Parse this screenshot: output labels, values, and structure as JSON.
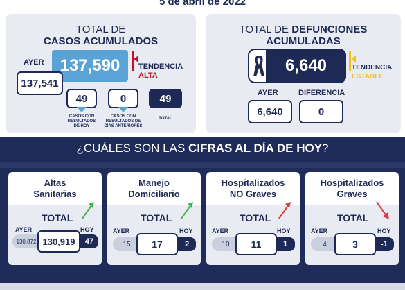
{
  "date": "5 de abril de 2022",
  "casos": {
    "header_line1": "TOTAL DE",
    "header_line2": "CASOS ACUMULADOS",
    "ayer_label": "AYER",
    "ayer_value": "137,541",
    "total_value": "137,590",
    "tendencia_label": "TENDENCIA",
    "tendencia_value": "ALTA",
    "con_resultados": "49",
    "con_resultados_label": "CASOS CON RESULTADOS DE HOY",
    "anteriores": "0",
    "anteriores_label": "CASOS CON RESULTADOS DE DÍAS ANTERIORES",
    "total_hoy": "49",
    "total_hoy_label": "TOTAL"
  },
  "defunciones": {
    "header_line1a": "TOTAL DE ",
    "header_line1b": "DEFUNCIONES",
    "header_line2": "ACUMULADAS",
    "total_value": "6,640",
    "tendencia_label": "TENDENCIA",
    "tendencia_value": "ESTABLE",
    "ayer_label": "AYER",
    "ayer_value": "6,640",
    "diferencia_label": "DIFERENCIA",
    "diferencia_value": "0"
  },
  "band": {
    "title_a": "¿CUÁLES SON LAS ",
    "title_b": "CIFRAS AL DÍA DE HOY",
    "title_c": "?"
  },
  "cards": [
    {
      "title1": "Altas",
      "title2": "Sanitarias",
      "total_label": "TOTAL",
      "ayer_label": "AYER",
      "ayer": "130,872",
      "value": "130,919",
      "hoy_label": "HOY",
      "hoy": "47",
      "trend": "up"
    },
    {
      "title1": "Manejo",
      "title2": "Domiciliario",
      "total_label": "TOTAL",
      "ayer_label": "AYER",
      "ayer": "15",
      "value": "17",
      "hoy_label": "HOY",
      "hoy": "2",
      "trend": "up"
    },
    {
      "title1": "Hospitalizados",
      "title2": "NO Graves",
      "total_label": "TOTAL",
      "ayer_label": "AYER",
      "ayer": "10",
      "value": "11",
      "hoy_label": "HOY",
      "hoy": "1",
      "trend": "up-red"
    },
    {
      "title1": "Hospitalizados",
      "title2": "Graves",
      "total_label": "TOTAL",
      "ayer_label": "AYER",
      "ayer": "4",
      "value": "3",
      "hoy_label": "HOY",
      "hoy": "-1",
      "trend": "down"
    }
  ],
  "colors": {
    "navy": "#1e2a55",
    "blue": "#5aa3d6",
    "alta": "#c8102e",
    "estable": "#f3c218",
    "green": "#3fb34f",
    "red": "#e0383e"
  }
}
